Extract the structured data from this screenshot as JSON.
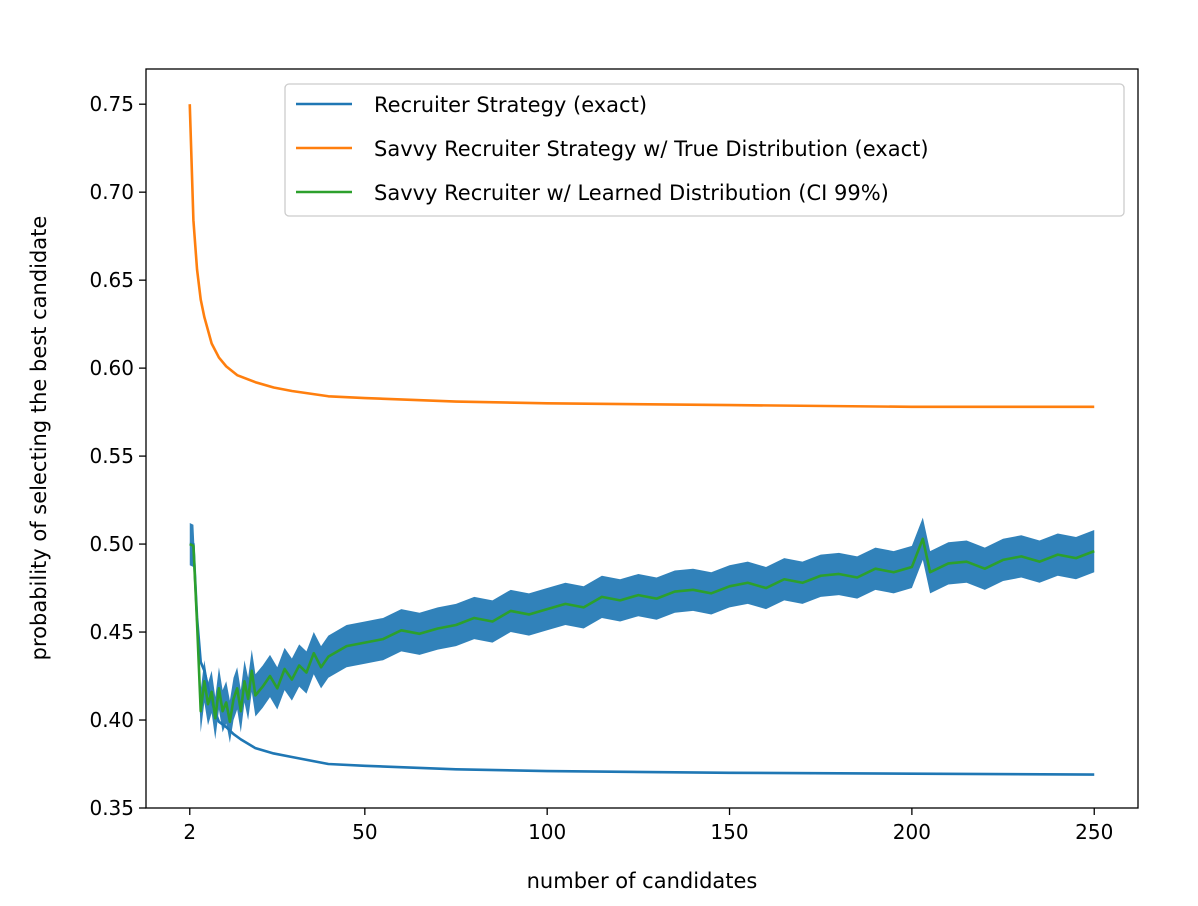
{
  "chart_data": {
    "type": "line",
    "title": "",
    "xlabel": "number of candidates",
    "ylabel": "probability of selecting the best candidate",
    "xlim": [
      -10,
      262
    ],
    "ylim": [
      0.35,
      0.77
    ],
    "xticks": [
      2,
      50,
      100,
      150,
      200,
      250
    ],
    "yticks": [
      0.35,
      0.4,
      0.45,
      0.5,
      0.55,
      0.6,
      0.65,
      0.7,
      0.75
    ],
    "grid": false,
    "legend_position": "top-right",
    "colors": {
      "recruiter": "#1f77b4",
      "savvy_true": "#ff7f0e",
      "savvy_learned": "#2ca02c",
      "band": "#1f77b4"
    },
    "series": [
      {
        "name": "Recruiter Strategy (exact)",
        "x": [
          2,
          3,
          4,
          5,
          6,
          8,
          10,
          12,
          14,
          16,
          20,
          25,
          30,
          40,
          50,
          75,
          100,
          150,
          200,
          250
        ],
        "y": [
          0.5,
          0.5,
          0.458,
          0.433,
          0.428,
          0.41,
          0.399,
          0.396,
          0.392,
          0.389,
          0.384,
          0.381,
          0.379,
          0.375,
          0.374,
          0.372,
          0.371,
          0.37,
          0.3695,
          0.369
        ]
      },
      {
        "name": "Savvy Recruiter Strategy w/ True Distribution (exact)",
        "x": [
          2,
          3,
          4,
          5,
          6,
          8,
          10,
          12,
          15,
          20,
          25,
          30,
          40,
          50,
          75,
          100,
          150,
          200,
          250
        ],
        "y": [
          0.75,
          0.684,
          0.656,
          0.639,
          0.629,
          0.614,
          0.606,
          0.601,
          0.596,
          0.592,
          0.589,
          0.587,
          0.584,
          0.583,
          0.581,
          0.58,
          0.579,
          0.578,
          0.578
        ]
      },
      {
        "name": "Savvy Recruiter w/ Learned Distribution (CI 99%)",
        "x": [
          2,
          3,
          4,
          5,
          6,
          7,
          8,
          9,
          10,
          11,
          12,
          13,
          14,
          15,
          16,
          17,
          18,
          19,
          20,
          22,
          24,
          26,
          28,
          30,
          32,
          34,
          36,
          38,
          40,
          45,
          50,
          55,
          60,
          65,
          70,
          75,
          80,
          85,
          90,
          95,
          100,
          105,
          110,
          115,
          120,
          125,
          130,
          135,
          140,
          145,
          150,
          155,
          160,
          165,
          170,
          175,
          180,
          185,
          190,
          195,
          200,
          203,
          205,
          210,
          215,
          220,
          225,
          230,
          235,
          240,
          245,
          250
        ],
        "y": [
          0.5,
          0.499,
          0.455,
          0.405,
          0.422,
          0.409,
          0.416,
          0.401,
          0.418,
          0.405,
          0.41,
          0.399,
          0.412,
          0.418,
          0.405,
          0.422,
          0.412,
          0.428,
          0.414,
          0.419,
          0.425,
          0.418,
          0.429,
          0.423,
          0.431,
          0.427,
          0.438,
          0.43,
          0.436,
          0.442,
          0.444,
          0.446,
          0.451,
          0.449,
          0.452,
          0.454,
          0.458,
          0.456,
          0.462,
          0.46,
          0.463,
          0.466,
          0.464,
          0.47,
          0.468,
          0.471,
          0.469,
          0.473,
          0.474,
          0.472,
          0.476,
          0.478,
          0.475,
          0.48,
          0.478,
          0.482,
          0.483,
          0.481,
          0.486,
          0.484,
          0.487,
          0.503,
          0.484,
          0.489,
          0.49,
          0.486,
          0.491,
          0.493,
          0.49,
          0.494,
          0.492,
          0.496
        ],
        "ci_half_width": 0.012
      }
    ]
  }
}
